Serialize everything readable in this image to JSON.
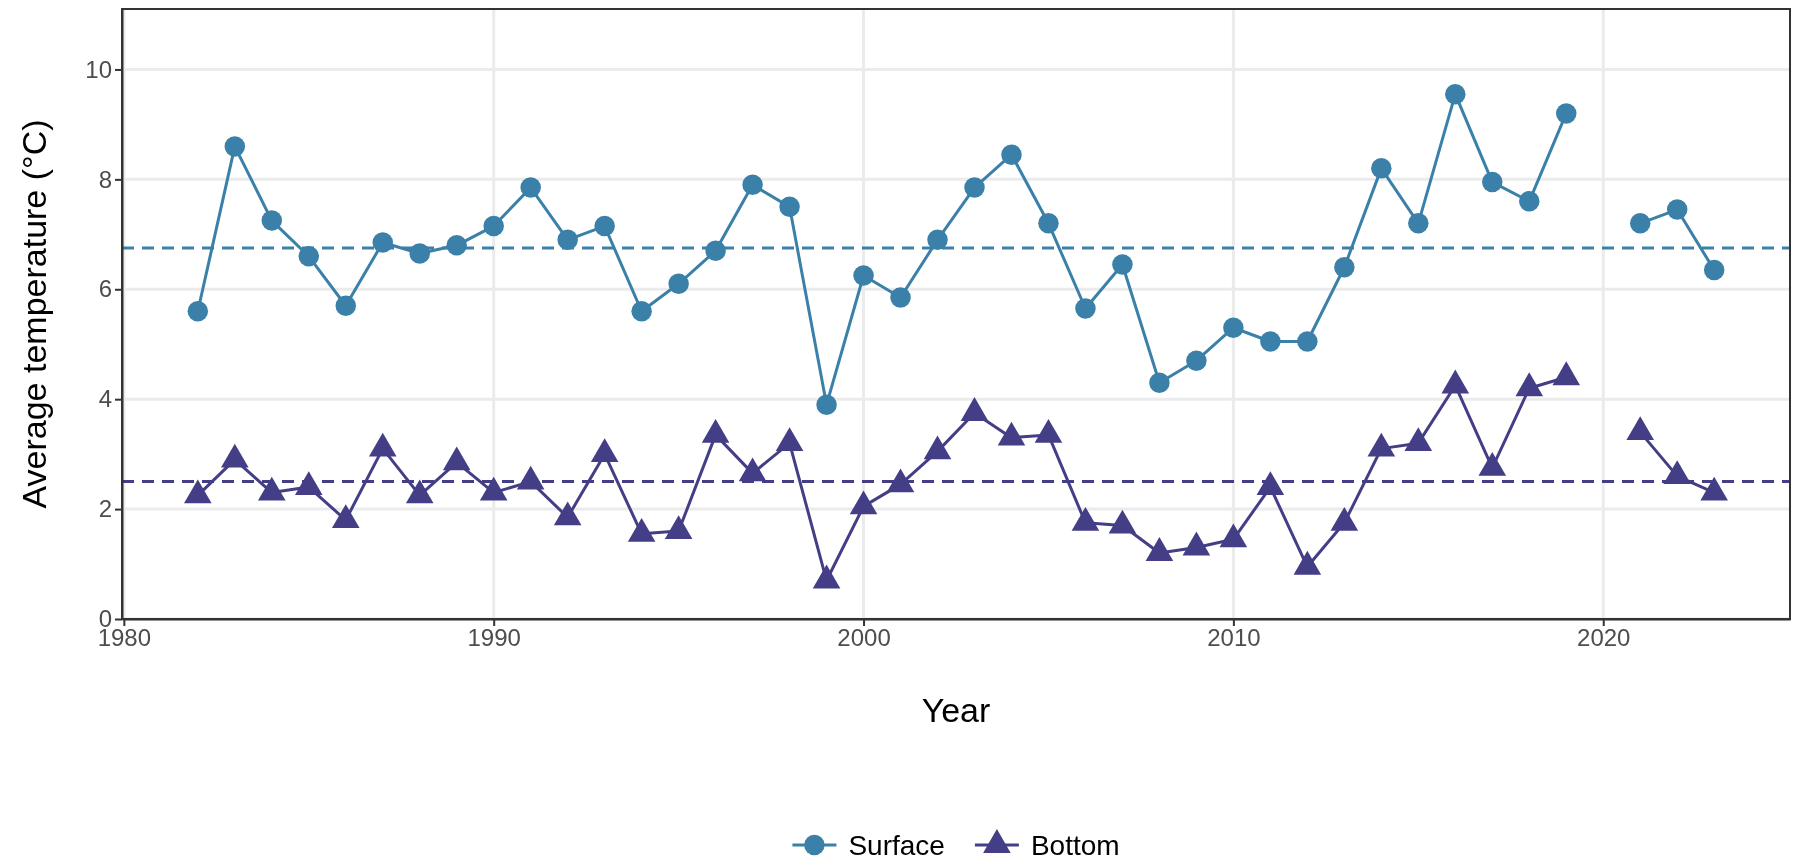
{
  "chart_data": {
    "type": "line",
    "xlabel": "Year",
    "ylabel": "Average temperature (°C)",
    "x": [
      1982,
      1983,
      1984,
      1985,
      1986,
      1987,
      1988,
      1989,
      1990,
      1991,
      1992,
      1993,
      1994,
      1995,
      1996,
      1997,
      1998,
      1999,
      2000,
      2001,
      2002,
      2003,
      2004,
      2005,
      2006,
      2007,
      2008,
      2009,
      2010,
      2011,
      2012,
      2013,
      2014,
      2015,
      2016,
      2017,
      2018,
      2019,
      2020,
      2021,
      2022,
      2023
    ],
    "series": [
      {
        "name": "Surface",
        "color": "#3a80a8",
        "marker": "circle",
        "values": [
          5.6,
          8.6,
          7.25,
          6.6,
          5.7,
          6.85,
          6.65,
          6.8,
          7.15,
          7.85,
          6.9,
          7.15,
          5.6,
          6.1,
          6.7,
          7.9,
          7.5,
          3.9,
          6.25,
          5.85,
          6.9,
          7.85,
          8.45,
          7.2,
          5.65,
          6.45,
          4.3,
          4.7,
          5.3,
          5.05,
          5.05,
          6.4,
          8.2,
          7.2,
          9.55,
          7.95,
          7.6,
          9.2,
          null,
          7.2,
          7.45,
          6.35
        ]
      },
      {
        "name": "Bottom",
        "color": "#433e85",
        "marker": "triangle",
        "values": [
          2.25,
          2.9,
          2.3,
          2.4,
          1.8,
          3.1,
          2.25,
          2.85,
          2.3,
          2.5,
          1.85,
          3.0,
          1.55,
          1.6,
          3.35,
          2.65,
          3.2,
          0.7,
          2.05,
          2.45,
          3.05,
          3.75,
          3.3,
          3.35,
          1.75,
          1.7,
          1.2,
          1.3,
          1.45,
          2.4,
          0.95,
          1.75,
          3.1,
          3.2,
          4.25,
          2.75,
          4.2,
          4.4,
          null,
          3.4,
          2.6,
          2.3
        ]
      }
    ],
    "ref_lines": [
      {
        "axis": "y",
        "value": 6.75,
        "color": "#3a80a8",
        "line_style": "dashed"
      },
      {
        "axis": "y",
        "value": 2.5,
        "color": "#433e85",
        "line_style": "dashed"
      }
    ],
    "xlim": [
      1979.95,
      2025.05
    ],
    "xticks": [
      1980,
      1990,
      2000,
      2010,
      2020
    ],
    "ylim": [
      0,
      11.1
    ],
    "yticks": [
      0,
      2,
      4,
      6,
      8,
      10
    ],
    "grid": true,
    "legend": "bottom",
    "line_style": "solid"
  }
}
